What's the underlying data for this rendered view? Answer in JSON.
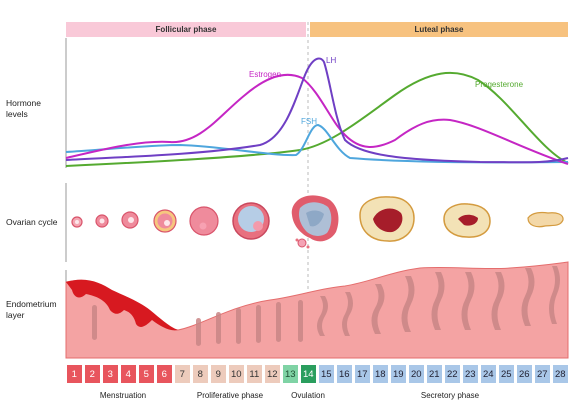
{
  "labels": {
    "hormone_levels": "Hormone\nlevels",
    "ovarian_cycle": "Ovarian cycle",
    "endometrium": "Endometrium\nlayer"
  },
  "phases": {
    "follicular": "Follicular phase",
    "luteal": "Luteal phase"
  },
  "hormones": {
    "estrogen": {
      "label": "Estrogen",
      "color": "#c526c4"
    },
    "lh": {
      "label": "LH",
      "color": "#6f3fc4"
    },
    "fsh": {
      "label": "FSH",
      "color": "#4ea6dd"
    },
    "progesterone": {
      "label": "Progesterone",
      "color": "#55aa30"
    }
  },
  "days": [
    "1",
    "2",
    "3",
    "4",
    "5",
    "6",
    "7",
    "8",
    "9",
    "10",
    "11",
    "12",
    "13",
    "14",
    "15",
    "16",
    "17",
    "18",
    "19",
    "20",
    "21",
    "22",
    "23",
    "24",
    "25",
    "26",
    "27",
    "28"
  ],
  "day_colors": {
    "menstruation": "#e8555d",
    "proliferative": "#edcbbc",
    "ovulation_light": "#7fd3a5",
    "ovulation_dark": "#2a9e5e",
    "secretory": "#a9c7e8"
  },
  "stages": {
    "menstruation": "Menstruation",
    "proliferative": "Proliferative phase",
    "ovulation": "Ovulation",
    "secretory": "Secretory phase"
  }
}
